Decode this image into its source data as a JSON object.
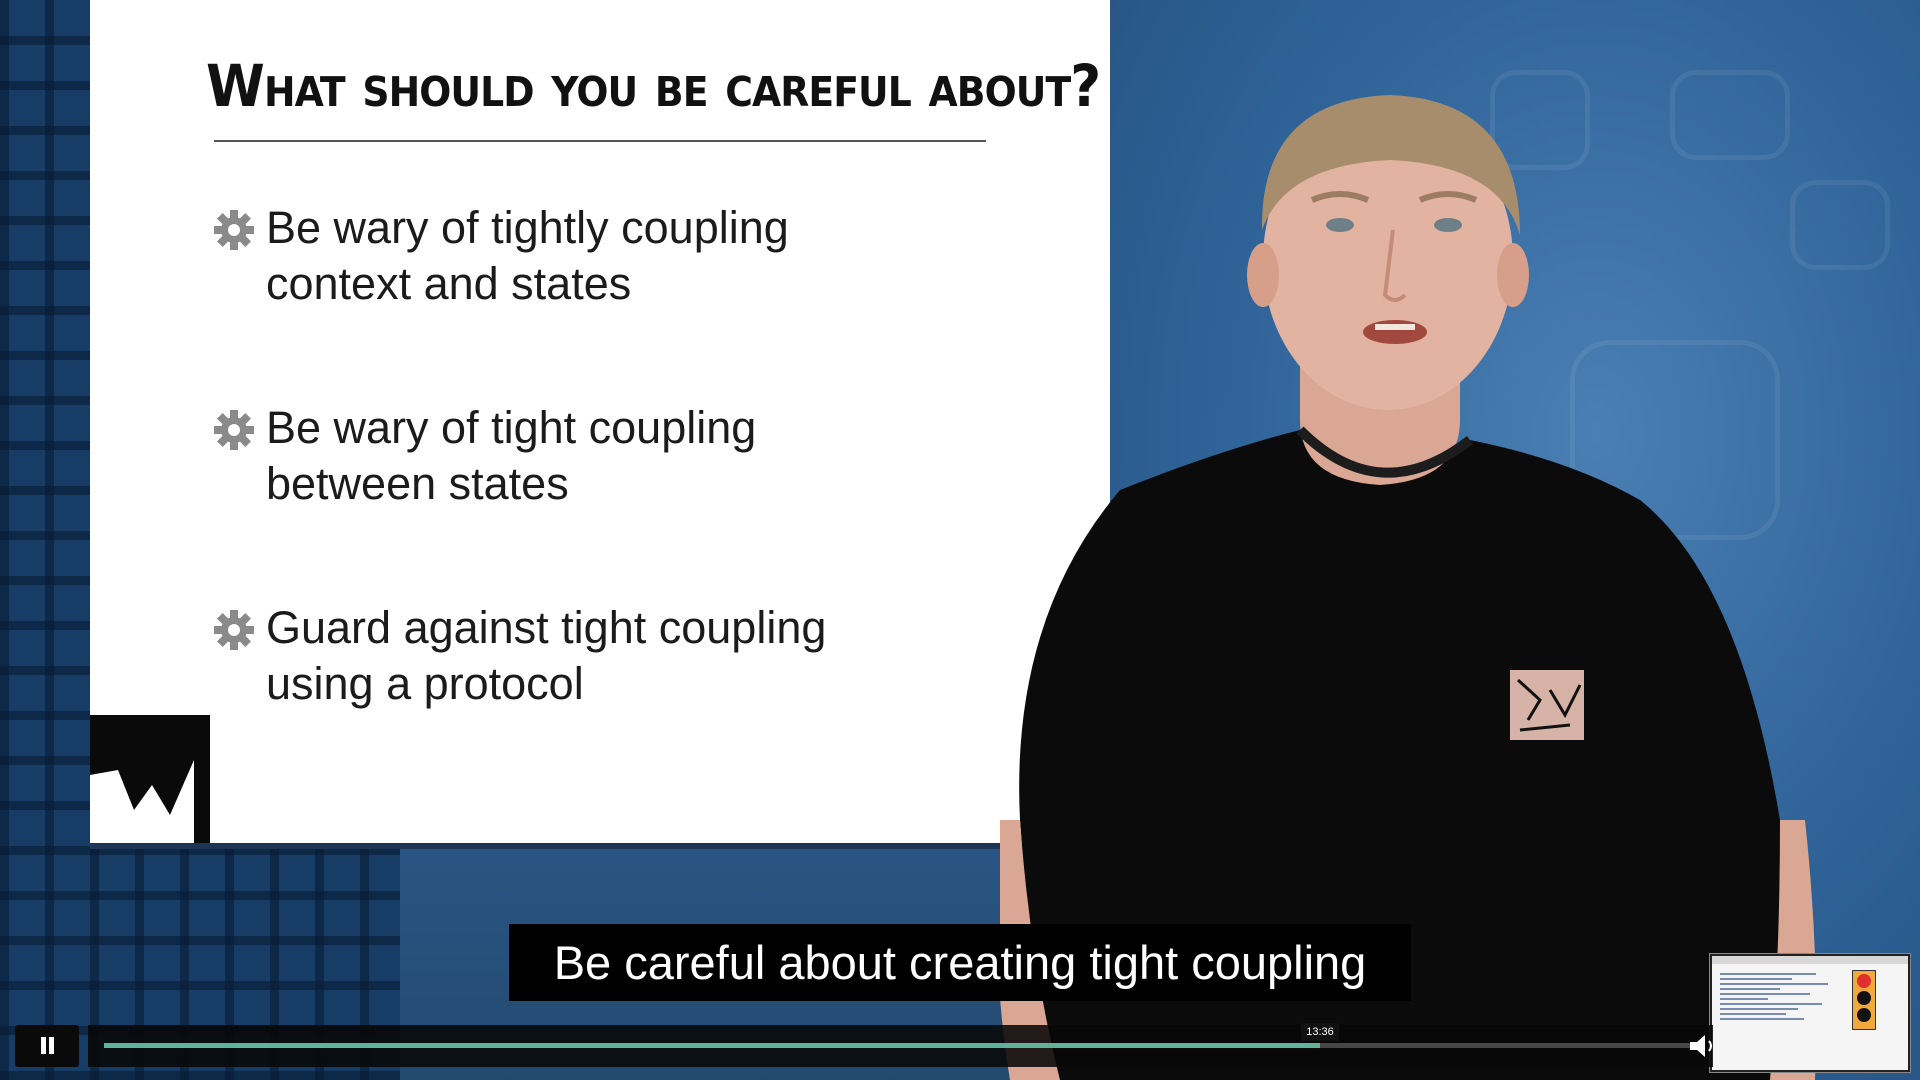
{
  "slide": {
    "title": "What should you be careful about?",
    "bullets": [
      {
        "line1": "Be wary of tightly coupling",
        "line2": "context and states"
      },
      {
        "line1": "Be wary of tight coupling",
        "line2": "between states"
      },
      {
        "line1": "Guard against tight coupling",
        "line2": "using a protocol"
      }
    ]
  },
  "caption": {
    "text": "Be careful about creating tight coupling"
  },
  "player": {
    "hover_time": "13:36",
    "progress": 0.76
  },
  "colors": {
    "progress": "#5fb39a",
    "background": "#2d5d91"
  }
}
